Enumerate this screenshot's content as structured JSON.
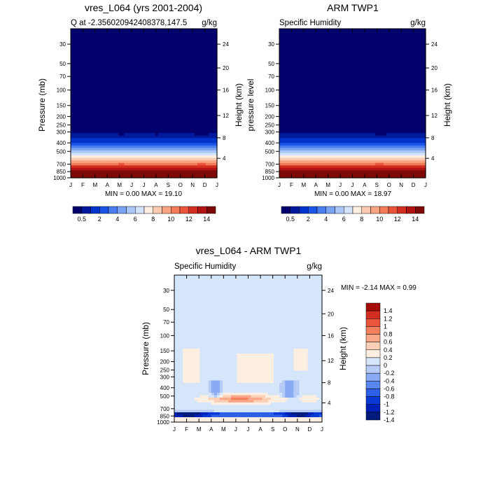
{
  "palette_blue_red": [
    "#03006d",
    "#001a9c",
    "#0033cc",
    "#1a55e8",
    "#4a7df0",
    "#7aa3f3",
    "#a9c6f6",
    "#d3e3fb",
    "#fdeee2",
    "#fccab1",
    "#f9a583",
    "#f47d59",
    "#e9553a",
    "#d42e22",
    "#b01513",
    "#7d0a06"
  ],
  "palette_diff": [
    "#021a7a",
    "#0021b7",
    "#0a3ad6",
    "#2d5fe8",
    "#5a86ef",
    "#8aaaf3",
    "#b6cbf6",
    "#d6e6fa",
    "#fdeee2",
    "#fccfb7",
    "#f9a98a",
    "#f4805d",
    "#e9563b",
    "#d42e22",
    "#a40c08"
  ],
  "charts": [
    {
      "type": "heatmap",
      "title": "vres_L064 (yrs 2001-2004)",
      "subtitle_left": "Q at -2.356020942408378,147.5",
      "subtitle_right": "g/kg",
      "ylabel": "Pressure (mb)",
      "ylabel_right": "Height (km)",
      "x_ticks": [
        "J",
        "F",
        "M",
        "A",
        "M",
        "J",
        "J",
        "A",
        "S",
        "O",
        "N",
        "D",
        "J"
      ],
      "p_ticks": [
        "30",
        "50",
        "70",
        "100",
        "150",
        "200",
        "250",
        "300",
        "400",
        "500",
        "700",
        "850",
        "1000"
      ],
      "p_values": [
        30,
        50,
        70,
        100,
        150,
        200,
        250,
        300,
        400,
        500,
        700,
        850,
        1000
      ],
      "h_ticks": [
        "24",
        "20",
        "16",
        "12",
        "8",
        "4"
      ],
      "h_pressures": [
        30,
        56,
        100,
        195,
        350,
        600
      ],
      "stats": "MIN =  0.00 MAX =  19.10",
      "colorbar_labels": [
        "0.5",
        "2",
        "4",
        "6",
        "8",
        "10",
        "12",
        "14"
      ],
      "variant": "model"
    },
    {
      "type": "heatmap",
      "title": "ARM TWP1",
      "subtitle_left": "Specific Humidity",
      "subtitle_right": "g/kg",
      "ylabel": "pressure level",
      "ylabel_right": "Height (km)",
      "x_ticks": [
        "J",
        "F",
        "M",
        "A",
        "M",
        "J",
        "J",
        "A",
        "S",
        "O",
        "N",
        "D",
        "J"
      ],
      "p_ticks": [
        "30",
        "50",
        "70",
        "100",
        "150",
        "200",
        "250",
        "300",
        "400",
        "500",
        "700",
        "850",
        "1000"
      ],
      "p_values": [
        30,
        50,
        70,
        100,
        150,
        200,
        250,
        300,
        400,
        500,
        700,
        850,
        1000
      ],
      "h_ticks": [
        "24",
        "20",
        "16",
        "12",
        "8",
        "4"
      ],
      "h_pressures": [
        30,
        56,
        100,
        195,
        350,
        600
      ],
      "stats": "MIN =  0.00 MAX =  18.97",
      "colorbar_labels": [
        "0.5",
        "2",
        "4",
        "6",
        "8",
        "10",
        "12",
        "14"
      ],
      "variant": "obs"
    },
    {
      "type": "heatmap",
      "title": "vres_L064 - ARM TWP1",
      "subtitle_left": "Specific Humidity",
      "subtitle_right": "g/kg",
      "ylabel": "Pressure (mb)",
      "ylabel_right": "Height (km)",
      "x_ticks": [
        "J",
        "F",
        "M",
        "A",
        "M",
        "J",
        "J",
        "A",
        "S",
        "O",
        "N",
        "D",
        "J"
      ],
      "p_ticks": [
        "30",
        "50",
        "70",
        "100",
        "150",
        "200",
        "250",
        "300",
        "400",
        "500",
        "700",
        "850",
        "1000"
      ],
      "p_values": [
        30,
        50,
        70,
        100,
        150,
        200,
        250,
        300,
        400,
        500,
        700,
        850,
        1000
      ],
      "h_ticks": [
        "24",
        "20",
        "16",
        "12",
        "8",
        "4"
      ],
      "h_pressures": [
        30,
        56,
        100,
        195,
        350,
        600
      ],
      "stats": "MIN =  -2.14 MAX =    0.99",
      "colorbar_labels": [
        "1.4",
        "1.2",
        "1",
        "0.8",
        "0.6",
        "0.4",
        "0.2",
        "0",
        "-0.2",
        "-0.4",
        "-0.6",
        "-0.8",
        "-1",
        "-1.2",
        "-1.4"
      ],
      "variant": "diff"
    }
  ]
}
